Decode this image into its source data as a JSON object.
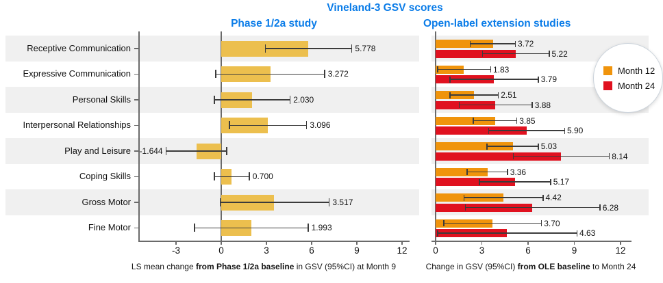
{
  "title": "Vineland-3 GSV scores",
  "colors": {
    "title_blue": "#0a7ce8",
    "gold": "#ecbf4e",
    "orange": "#f0940c",
    "red": "#e0111f",
    "stripe": "#f0f0f0",
    "axis": "#6a6a6a",
    "error_bar": "#3b3b3b"
  },
  "panels": {
    "left": {
      "title": "Phase 1/2a study"
    },
    "right": {
      "title": "Open-label extension studies"
    }
  },
  "captions": {
    "left": {
      "pre": "LS mean change ",
      "bold": "from Phase 1/2a baseline",
      "post": " in GSV (95%CI) at Month 9"
    },
    "right": {
      "pre": "Change in GSV (95%CI) ",
      "bold": "from OLE baseline",
      "post": " to Month 24"
    }
  },
  "legend": {
    "position": "top-right-circle",
    "items": [
      {
        "label": "Month 12",
        "color": "#f0940c"
      },
      {
        "label": "Month 24",
        "color": "#e0111f"
      }
    ]
  },
  "chart_data": [
    {
      "type": "bar",
      "orientation": "horizontal",
      "title": "Phase 1/2a study",
      "categories": [
        "Receptive Communication",
        "Expressive Communication",
        "Personal Skills",
        "Interpersonal Relationships",
        "Play and Leisure",
        "Coping Skills",
        "Gross Motor",
        "Fine Motor"
      ],
      "series": [
        {
          "name": "LS mean change at Month 9",
          "color_key": "gold",
          "values": [
            5.778,
            3.272,
            2.03,
            3.096,
            -1.644,
            0.7,
            3.517,
            1.993
          ],
          "labels": [
            "5.778",
            "3.272",
            "2.030",
            "3.096",
            "-1.644",
            "0.700",
            "3.517",
            "1.993"
          ],
          "ci_low": [
            2.9,
            -0.4,
            -0.5,
            0.5,
            -3.7,
            -0.5,
            -0.1,
            -1.8
          ],
          "ci_high": [
            8.7,
            6.9,
            4.6,
            5.7,
            0.4,
            1.9,
            7.2,
            5.8
          ]
        }
      ],
      "xlim": [
        -5.5,
        12.5
      ],
      "xticks": [
        -3,
        0,
        3,
        6,
        9,
        12
      ],
      "grid": false,
      "xlabel": "LS mean change from Phase 1/2a baseline in GSV (95%CI) at Month 9"
    },
    {
      "type": "bar",
      "orientation": "horizontal",
      "title": "Open-label extension studies",
      "categories": [
        "Receptive Communication",
        "Expressive Communication",
        "Personal Skills",
        "Interpersonal Relationships",
        "Play and Leisure",
        "Coping Skills",
        "Gross Motor",
        "Fine Motor"
      ],
      "series": [
        {
          "name": "Month 12",
          "color_key": "orange",
          "values": [
            3.72,
            1.83,
            2.51,
            3.85,
            5.03,
            3.36,
            4.42,
            3.7
          ],
          "labels": [
            "3.72",
            "1.83",
            "2.51",
            "3.85",
            "5.03",
            "3.36",
            "4.42",
            "3.70"
          ],
          "ci_low": [
            2.2,
            0.1,
            0.9,
            2.4,
            3.3,
            2.0,
            1.8,
            0.5
          ],
          "ci_high": [
            5.2,
            3.6,
            4.1,
            5.3,
            6.7,
            4.7,
            7.0,
            6.9
          ]
        },
        {
          "name": "Month 24",
          "color_key": "red",
          "values": [
            5.22,
            3.79,
            3.88,
            5.9,
            8.14,
            5.17,
            6.28,
            4.63
          ],
          "labels": [
            "5.22",
            "3.79",
            "3.88",
            "5.90",
            "8.14",
            "5.17",
            "6.28",
            "4.63"
          ],
          "ci_low": [
            3.0,
            0.9,
            1.5,
            3.4,
            5.0,
            2.8,
            1.9,
            0.1
          ],
          "ci_high": [
            7.4,
            6.7,
            6.3,
            8.4,
            11.3,
            7.5,
            10.7,
            9.2
          ]
        }
      ],
      "xlim": [
        -0.3,
        12.7
      ],
      "xticks": [
        0,
        3,
        6,
        9,
        12
      ],
      "grid": false,
      "xlabel": "Change in GSV (95%CI) from OLE baseline to Month 24"
    }
  ]
}
